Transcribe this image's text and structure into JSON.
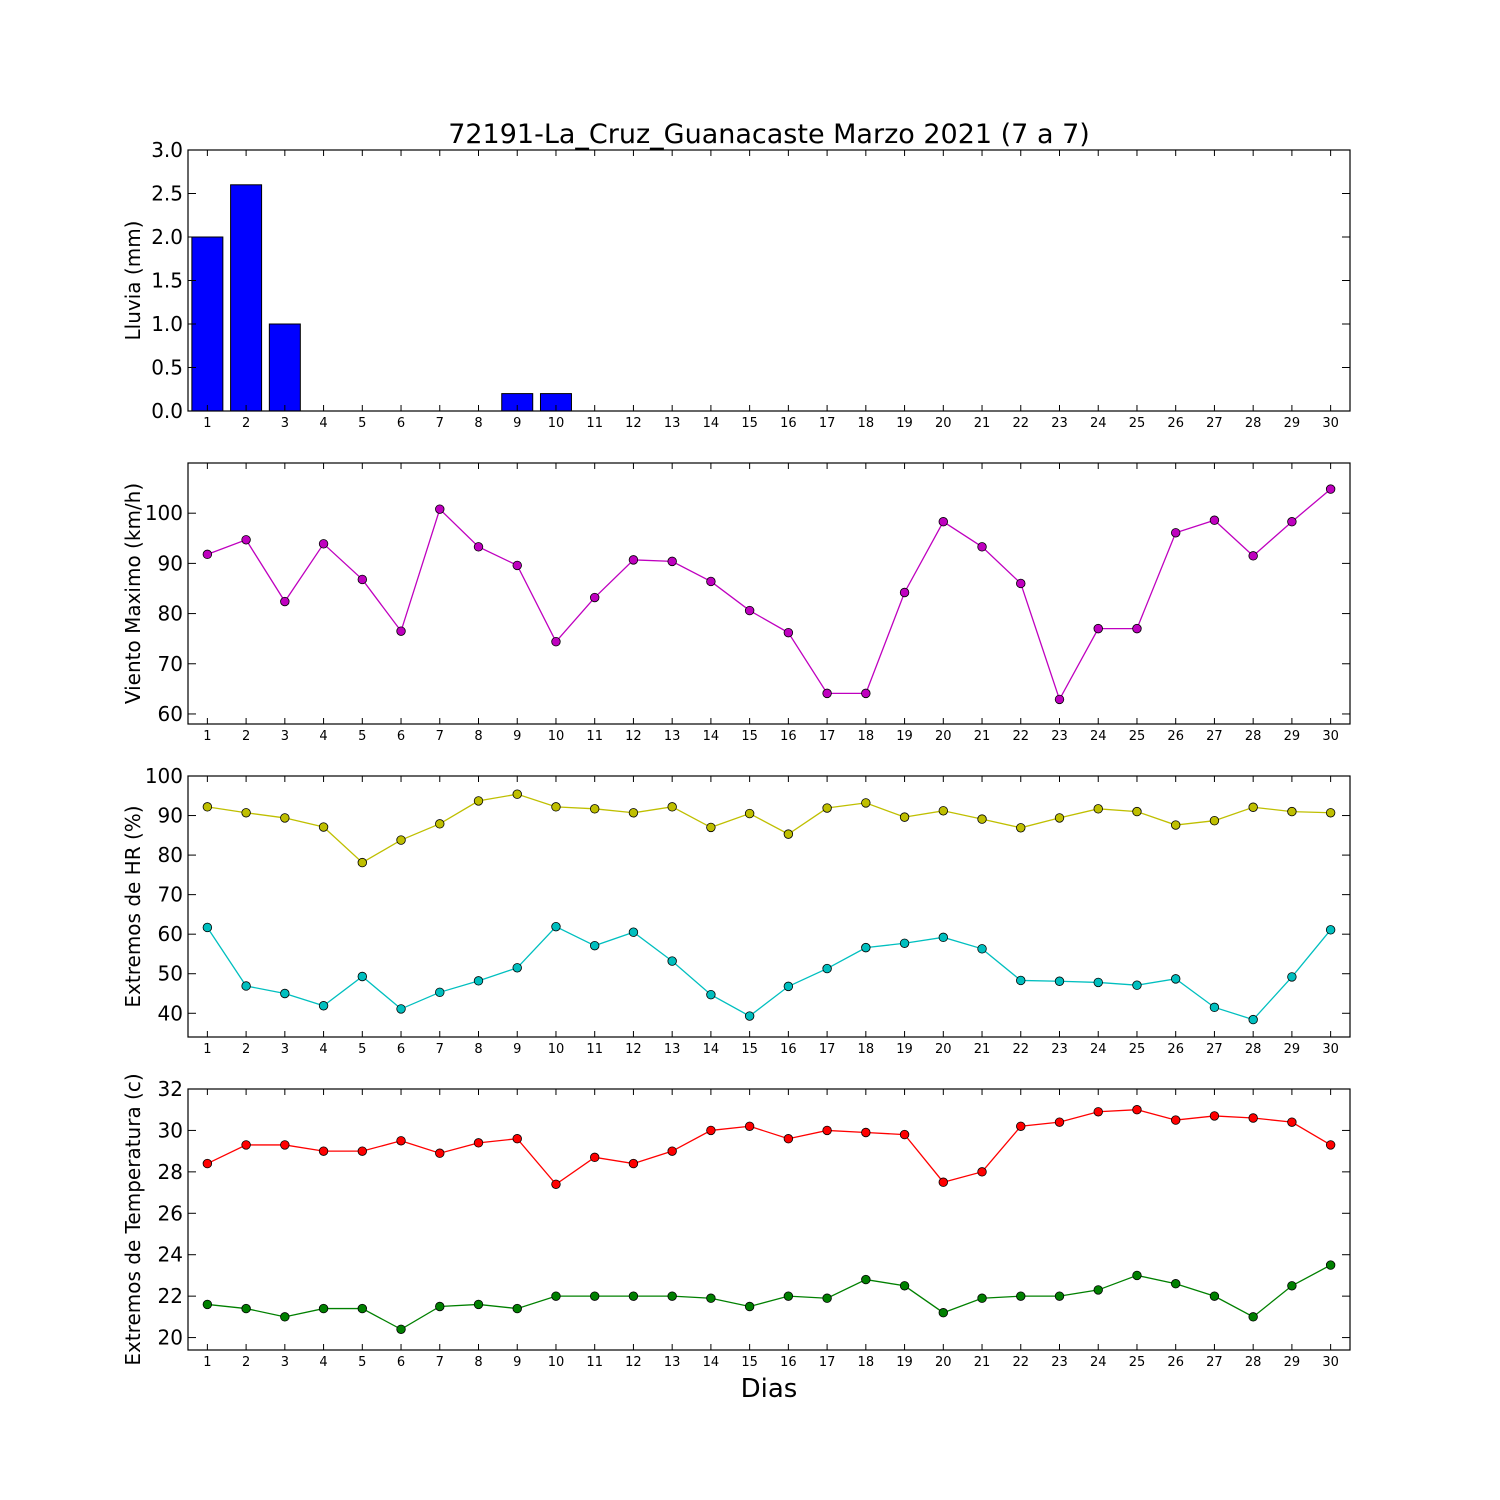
{
  "figure_title": "72191-La_Cruz_Guanacaste Marzo 2021  (7 a 7)",
  "xlabel": "Dias",
  "colors": {
    "rain_bar": "#0000ff",
    "wind": "#bf00bf",
    "hr_max": "#bfbf00",
    "hr_min": "#00bfbf",
    "temp_max": "#ff0000",
    "temp_min": "#008000"
  },
  "chart_data": [
    {
      "type": "bar",
      "ylabel": "Lluvia (mm)",
      "ylim": [
        0,
        3.0
      ],
      "yticks": [
        0.0,
        0.5,
        1.0,
        1.5,
        2.0,
        2.5,
        3.0
      ],
      "categories": [
        1,
        2,
        3,
        4,
        5,
        6,
        7,
        8,
        9,
        10,
        11,
        12,
        13,
        14,
        15,
        16,
        17,
        18,
        19,
        20,
        21,
        22,
        23,
        24,
        25,
        26,
        27,
        28,
        29,
        30
      ],
      "values": [
        2.0,
        2.6,
        1.0,
        0,
        0,
        0,
        0,
        0,
        0.2,
        0.2,
        0,
        0,
        0,
        0,
        0,
        0,
        0,
        0,
        0,
        0,
        0,
        0,
        0,
        0,
        0,
        0,
        0,
        0,
        0,
        0
      ]
    },
    {
      "type": "line",
      "ylabel": "Viento Maximo (km/h)",
      "ylim": [
        58,
        110
      ],
      "yticks": [
        60,
        70,
        80,
        90,
        100
      ],
      "x": [
        1,
        2,
        3,
        4,
        5,
        6,
        7,
        8,
        9,
        10,
        11,
        12,
        13,
        14,
        15,
        16,
        17,
        18,
        19,
        20,
        21,
        22,
        23,
        24,
        25,
        26,
        27,
        28,
        29,
        30
      ],
      "series": [
        {
          "values": [
            91.8,
            94.7,
            82.4,
            93.9,
            86.8,
            76.5,
            100.8,
            93.3,
            89.6,
            74.4,
            83.2,
            90.7,
            90.4,
            86.4,
            80.6,
            76.2,
            64.1,
            64.1,
            84.2,
            98.3,
            93.3,
            86.0,
            62.9,
            77.0,
            77.0,
            96.1,
            98.6,
            91.5,
            98.3,
            104.8
          ]
        }
      ]
    },
    {
      "type": "line",
      "ylabel": "Extremos de HR (%)",
      "ylim": [
        34,
        100
      ],
      "yticks": [
        40,
        50,
        60,
        70,
        80,
        90,
        100
      ],
      "x": [
        1,
        2,
        3,
        4,
        5,
        6,
        7,
        8,
        9,
        10,
        11,
        12,
        13,
        14,
        15,
        16,
        17,
        18,
        19,
        20,
        21,
        22,
        23,
        24,
        25,
        26,
        27,
        28,
        29,
        30
      ],
      "series": [
        {
          "values": [
            92.2,
            90.7,
            89.4,
            87.1,
            78.1,
            83.8,
            87.9,
            93.7,
            95.4,
            92.2,
            91.7,
            90.7,
            92.2,
            87.0,
            90.5,
            85.3,
            91.9,
            93.2,
            89.6,
            91.2,
            89.1,
            86.9,
            89.4,
            91.7,
            91.0,
            87.6,
            88.7,
            92.1,
            91.0,
            90.7
          ]
        },
        {
          "values": [
            61.7,
            46.9,
            45.0,
            41.9,
            49.3,
            41.1,
            45.3,
            48.2,
            51.5,
            61.9,
            57.1,
            60.5,
            53.2,
            44.7,
            39.3,
            46.8,
            51.3,
            56.6,
            57.7,
            59.2,
            56.3,
            48.3,
            48.1,
            47.8,
            47.1,
            48.7,
            41.5,
            38.4,
            49.2,
            61.1
          ]
        }
      ]
    },
    {
      "type": "line",
      "ylabel": "Extremos de Temperatura (c)",
      "ylim": [
        19.4,
        32
      ],
      "yticks": [
        20,
        22,
        24,
        26,
        28,
        30,
        32
      ],
      "x": [
        1,
        2,
        3,
        4,
        5,
        6,
        7,
        8,
        9,
        10,
        11,
        12,
        13,
        14,
        15,
        16,
        17,
        18,
        19,
        20,
        21,
        22,
        23,
        24,
        25,
        26,
        27,
        28,
        29,
        30
      ],
      "series": [
        {
          "values": [
            28.4,
            29.3,
            29.3,
            29.0,
            29.0,
            29.5,
            28.9,
            29.4,
            29.6,
            27.4,
            28.7,
            28.4,
            29.0,
            30.0,
            30.2,
            29.6,
            30.0,
            29.9,
            29.8,
            27.5,
            28.0,
            30.2,
            30.4,
            30.9,
            31.0,
            30.5,
            30.7,
            30.6,
            30.4,
            29.3
          ]
        },
        {
          "values": [
            21.6,
            21.4,
            21.0,
            21.4,
            21.4,
            20.4,
            21.5,
            21.6,
            21.4,
            22.0,
            22.0,
            22.0,
            22.0,
            21.9,
            21.5,
            22.0,
            21.9,
            22.8,
            22.5,
            21.2,
            21.9,
            22.0,
            22.0,
            22.3,
            23.0,
            22.6,
            22.0,
            21.0,
            22.5,
            23.5
          ]
        }
      ]
    }
  ]
}
